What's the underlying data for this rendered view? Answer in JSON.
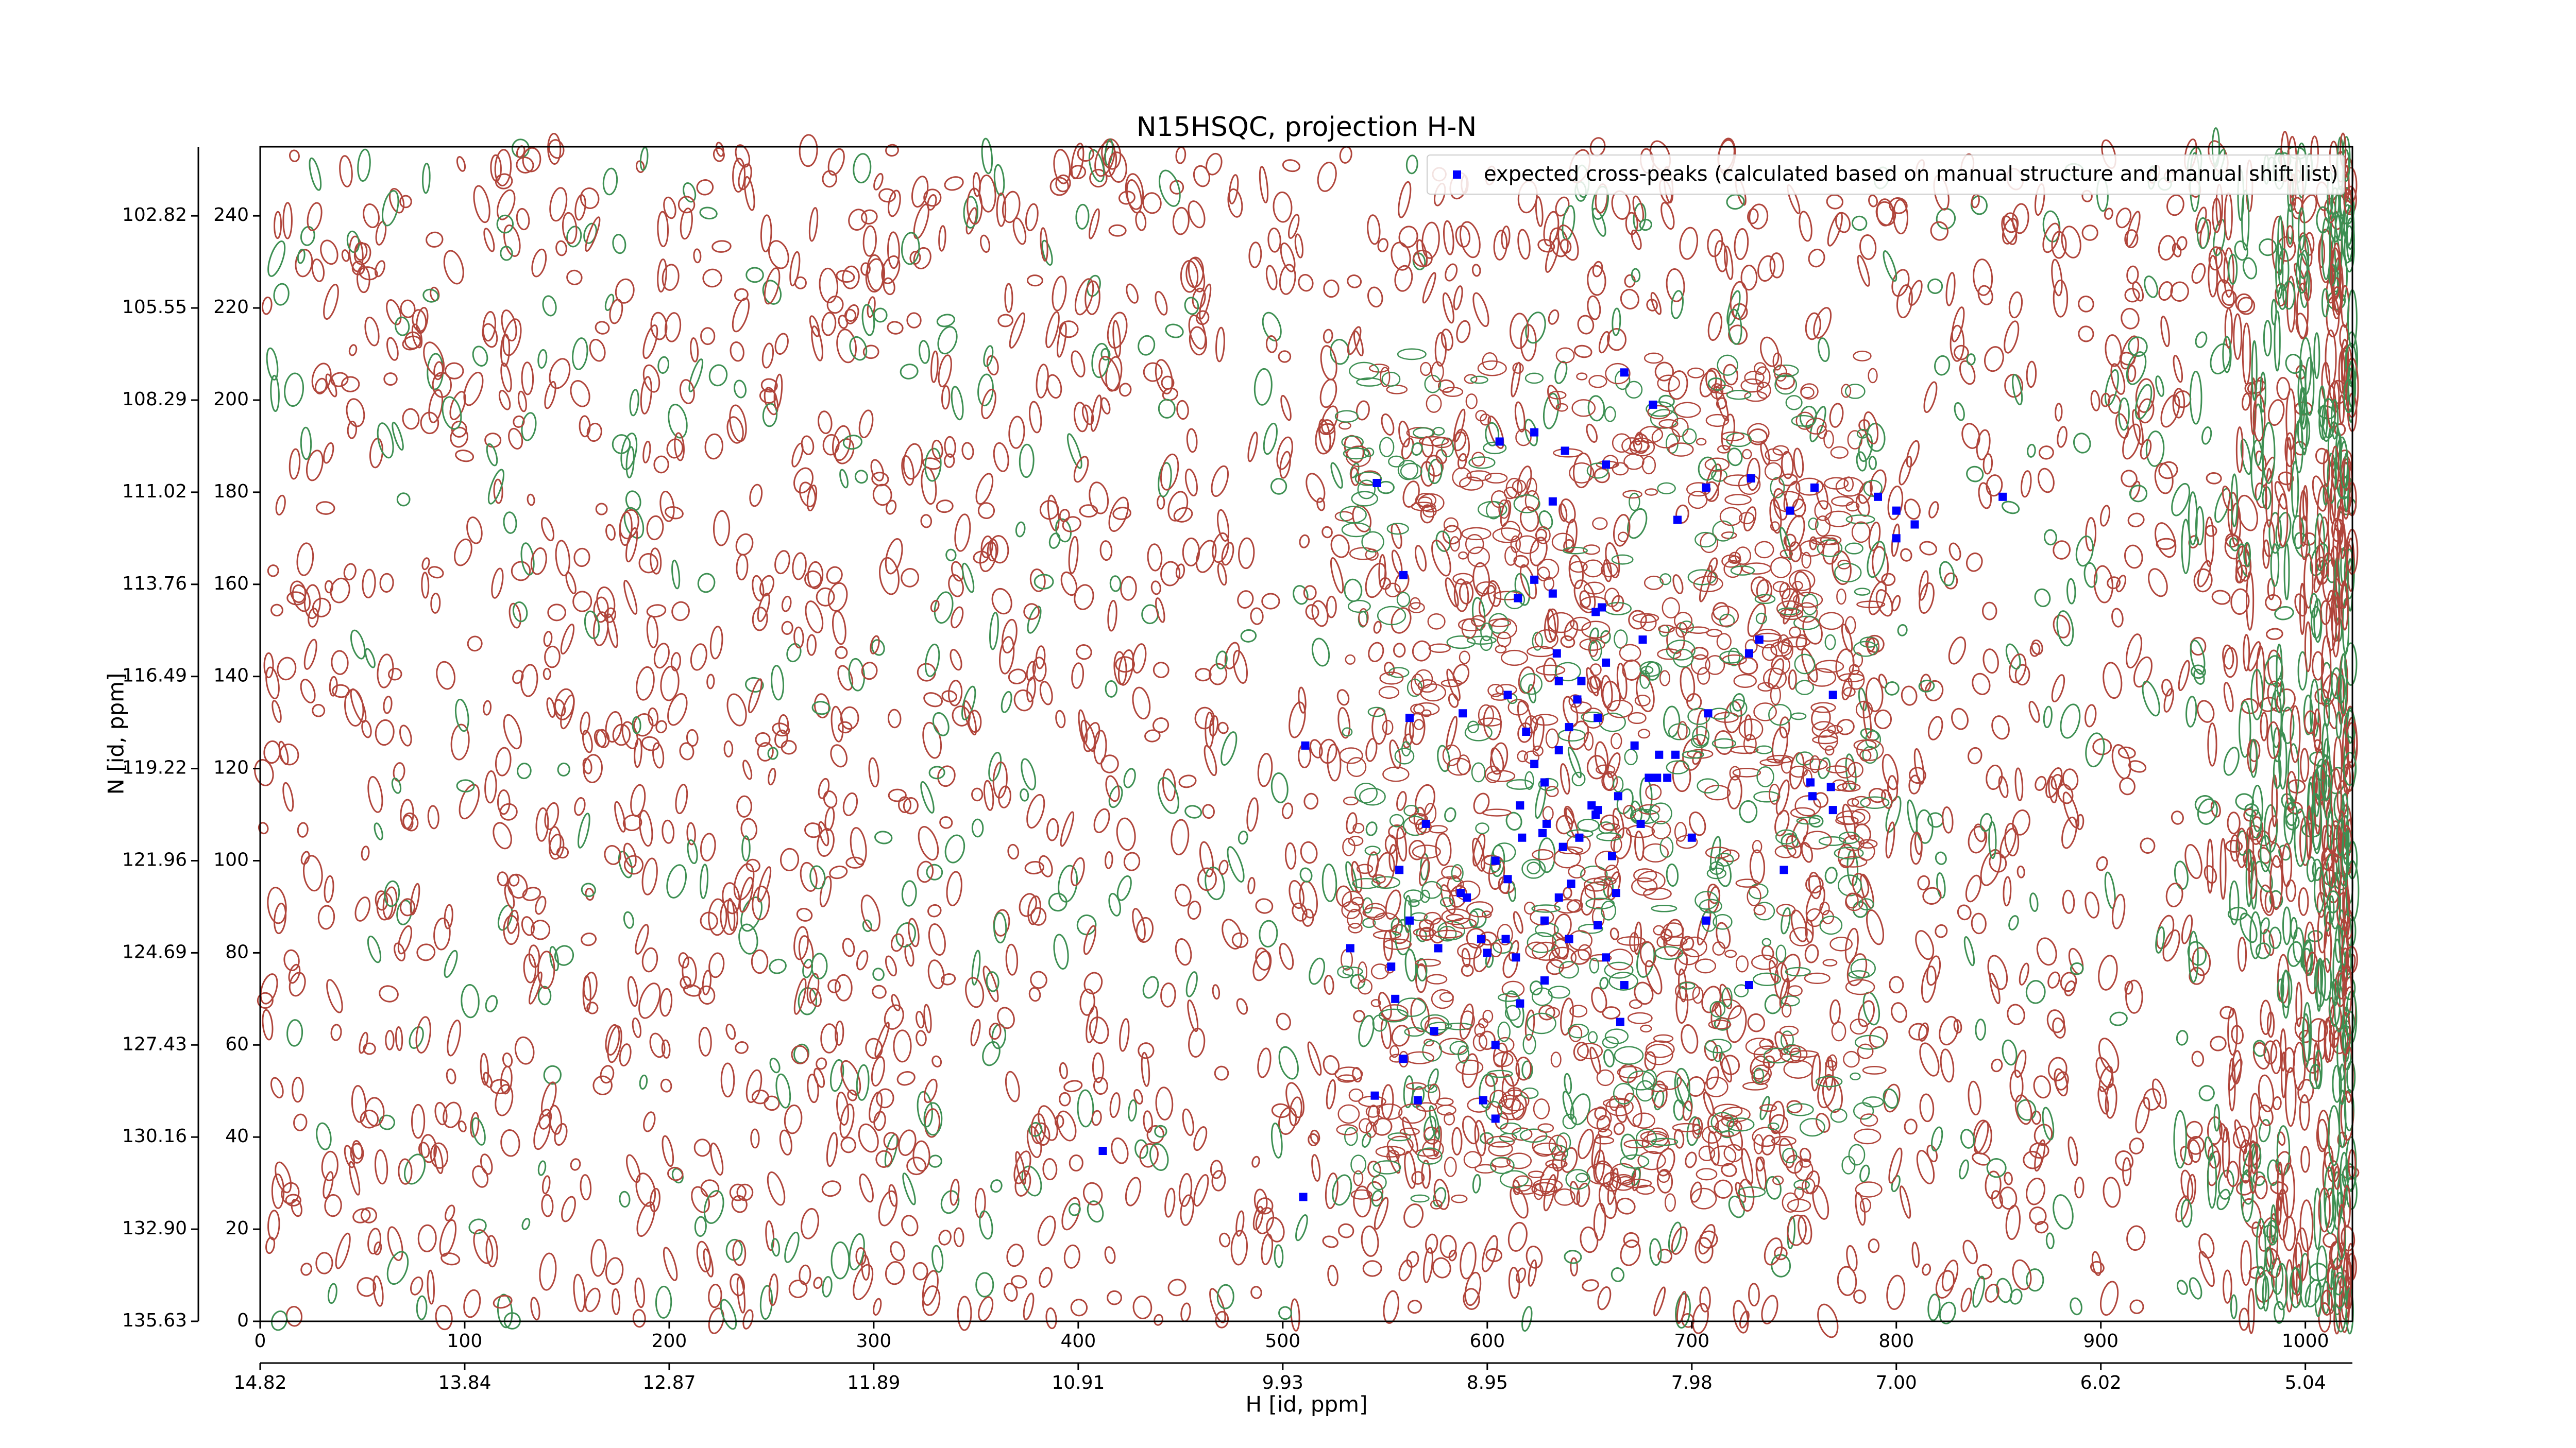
{
  "chart_data": {
    "type": "scatter",
    "title": "N15HSQC, projection H-N",
    "x_label": "H [id, ppm]",
    "y_label": "N [id, ppm]",
    "xlim": [
      0,
      1023
    ],
    "ylim": [
      0,
      255
    ],
    "xticks": [
      0,
      100,
      200,
      300,
      400,
      500,
      600,
      700,
      800,
      900,
      1000
    ],
    "yticks": [
      0,
      20,
      40,
      60,
      80,
      100,
      120,
      140,
      160,
      180,
      200,
      220,
      240
    ],
    "x2ticks": [
      {
        "value": 0,
        "label": "14.82"
      },
      {
        "value": 100,
        "label": "13.84"
      },
      {
        "value": 200,
        "label": "12.87"
      },
      {
        "value": 300,
        "label": "11.89"
      },
      {
        "value": 400,
        "label": "10.91"
      },
      {
        "value": 500,
        "label": "9.93"
      },
      {
        "value": 600,
        "label": "8.95"
      },
      {
        "value": 700,
        "label": "7.98"
      },
      {
        "value": 800,
        "label": "7.00"
      },
      {
        "value": 900,
        "label": "6.02"
      },
      {
        "value": 1000,
        "label": "5.04"
      }
    ],
    "y2ticks": [
      {
        "value": 0,
        "label": "135.63"
      },
      {
        "value": 20,
        "label": "132.90"
      },
      {
        "value": 40,
        "label": "130.16"
      },
      {
        "value": 60,
        "label": "127.43"
      },
      {
        "value": 80,
        "label": "124.69"
      },
      {
        "value": 100,
        "label": "121.96"
      },
      {
        "value": 120,
        "label": "119.22"
      },
      {
        "value": 140,
        "label": "116.49"
      },
      {
        "value": 160,
        "label": "113.76"
      },
      {
        "value": 180,
        "label": "111.02"
      },
      {
        "value": 200,
        "label": "108.29"
      },
      {
        "value": 220,
        "label": "105.55"
      },
      {
        "value": 240,
        "label": "102.82"
      }
    ],
    "contour_colors": [
      "#b0453b",
      "#3d8f52"
    ],
    "legend": "upper right",
    "series": [
      {
        "name": "expected cross-peaks (calculated based on manual structure and manual shift list)",
        "color": "#0000ff",
        "x": [
          667,
          681,
          623,
          606,
          638,
          658,
          546,
          729,
          707,
          760,
          791,
          852,
          632,
          748,
          693,
          800,
          809,
          800,
          559,
          623,
          632,
          615,
          656,
          653,
          676,
          733,
          728,
          634,
          658,
          635,
          646,
          610,
          644,
          769,
          562,
          588,
          708,
          654,
          619,
          640,
          635,
          672,
          684,
          692,
          511,
          623,
          628,
          683,
          679,
          758,
          768,
          759,
          688,
          769,
          664,
          616,
          651,
          654,
          653,
          629,
          675,
          570,
          645,
          637,
          617,
          604,
          700,
          661,
          627,
          557,
          745,
          610,
          641,
          587,
          590,
          635,
          663,
          628,
          562,
          654,
          707,
          597,
          609,
          640,
          533,
          576,
          600,
          614,
          553,
          658,
          628,
          728,
          667,
          555,
          616,
          574,
          665,
          604,
          559,
          545,
          566,
          598,
          604,
          412,
          510
        ],
        "values": [
          206,
          199,
          193,
          191,
          189,
          186,
          182,
          183,
          181,
          181,
          179,
          179,
          178,
          176,
          174,
          176,
          173,
          170,
          162,
          161,
          158,
          157,
          155,
          154,
          148,
          148,
          145,
          145,
          143,
          139,
          139,
          136,
          135,
          136,
          131,
          132,
          132,
          131,
          128,
          129,
          124,
          125,
          123,
          123,
          125,
          121,
          117,
          118,
          118,
          117,
          116,
          114,
          118,
          111,
          114,
          112,
          112,
          111,
          110,
          108,
          108,
          108,
          105,
          103,
          105,
          100,
          105,
          101,
          106,
          98,
          98,
          96,
          95,
          93,
          92,
          92,
          93,
          87,
          87,
          86,
          87,
          83,
          83,
          83,
          81,
          81,
          80,
          79,
          77,
          79,
          74,
          73,
          73,
          70,
          69,
          63,
          65,
          60,
          57,
          49,
          48,
          48,
          44,
          37,
          27
        ]
      }
    ]
  }
}
